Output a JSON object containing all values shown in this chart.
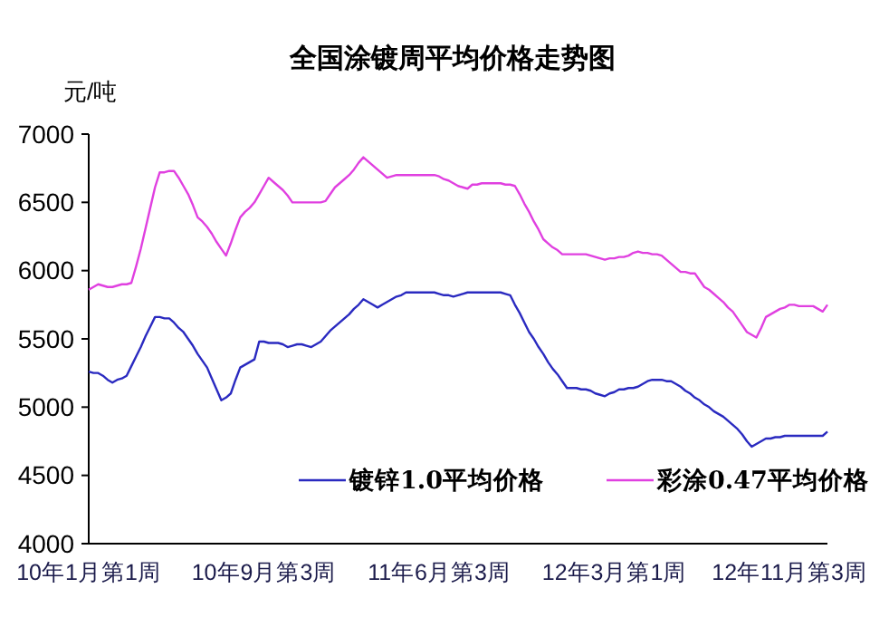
{
  "chart_data": {
    "type": "line",
    "title": "全国涂镀周平均价格走势图",
    "ylabel": "元/吨",
    "categories": [
      "10年1月第1周",
      null,
      null,
      null,
      null,
      null,
      null,
      null,
      null,
      null,
      null,
      null,
      null,
      null,
      null,
      null,
      null,
      null,
      null,
      null,
      null,
      null,
      null,
      null,
      null,
      null,
      null,
      null,
      null,
      null,
      null,
      null,
      null,
      null,
      null,
      null,
      null,
      "10年9月第3周",
      null,
      null,
      null,
      null,
      null,
      null,
      null,
      null,
      null,
      null,
      null,
      null,
      null,
      null,
      null,
      null,
      null,
      null,
      null,
      null,
      null,
      null,
      null,
      null,
      null,
      null,
      null,
      null,
      null,
      null,
      null,
      null,
      null,
      null,
      null,
      null,
      "11年6月第3周",
      null,
      null,
      null,
      null,
      null,
      null,
      null,
      null,
      null,
      null,
      null,
      null,
      null,
      null,
      null,
      null,
      null,
      null,
      null,
      null,
      null,
      null,
      null,
      null,
      null,
      null,
      null,
      null,
      null,
      null,
      null,
      null,
      null,
      null,
      null,
      null,
      "12年3月第1周",
      null,
      null,
      null,
      null,
      null,
      null,
      null,
      null,
      null,
      null,
      null,
      null,
      null,
      null,
      null,
      null,
      null,
      null,
      null,
      null,
      null,
      null,
      null,
      null,
      null,
      null,
      null,
      null,
      null,
      null,
      null,
      null,
      null,
      null,
      null,
      null,
      "12年11月第3周",
      null,
      null,
      null,
      null,
      null,
      null,
      null,
      null
    ],
    "series": [
      {
        "name": "镀锌1.0平均价格",
        "color": "#2a2ac0",
        "values": [
          5260,
          5250,
          5250,
          5230,
          5200,
          5180,
          5200,
          5210,
          5230,
          5300,
          5370,
          5440,
          5520,
          5590,
          5660,
          5660,
          5650,
          5650,
          5620,
          5580,
          5550,
          5500,
          5450,
          5390,
          5340,
          5290,
          5210,
          5130,
          5050,
          5070,
          5100,
          5200,
          5290,
          5310,
          5330,
          5350,
          5480,
          5480,
          5470,
          5470,
          5470,
          5460,
          5440,
          5450,
          5460,
          5460,
          5450,
          5440,
          5460,
          5480,
          5520,
          5560,
          5590,
          5620,
          5650,
          5680,
          5720,
          5750,
          5790,
          5770,
          5750,
          5730,
          5750,
          5770,
          5790,
          5810,
          5820,
          5840,
          5840,
          5840,
          5840,
          5840,
          5840,
          5840,
          5830,
          5820,
          5820,
          5810,
          5820,
          5830,
          5840,
          5840,
          5840,
          5840,
          5840,
          5840,
          5840,
          5840,
          5830,
          5820,
          5750,
          5690,
          5620,
          5550,
          5500,
          5440,
          5390,
          5330,
          5280,
          5240,
          5190,
          5140,
          5140,
          5140,
          5130,
          5130,
          5120,
          5100,
          5090,
          5080,
          5100,
          5110,
          5130,
          5130,
          5140,
          5140,
          5150,
          5170,
          5190,
          5200,
          5200,
          5200,
          5190,
          5190,
          5170,
          5150,
          5120,
          5100,
          5070,
          5050,
          5020,
          5000,
          4970,
          4950,
          4930,
          4900,
          4870,
          4840,
          4800,
          4750,
          4710,
          4730,
          4750,
          4770,
          4770,
          4780,
          4780,
          4790,
          4790,
          4790,
          4790,
          4790,
          4790,
          4790,
          4790,
          4790,
          4820
        ]
      },
      {
        "name": "彩涂0.47平均价格",
        "color": "#e040e0",
        "values": [
          5860,
          5880,
          5900,
          5890,
          5880,
          5880,
          5890,
          5900,
          5900,
          5910,
          6030,
          6160,
          6310,
          6460,
          6610,
          6720,
          6720,
          6730,
          6730,
          6680,
          6620,
          6560,
          6480,
          6390,
          6360,
          6320,
          6270,
          6210,
          6160,
          6110,
          6200,
          6300,
          6390,
          6430,
          6460,
          6500,
          6560,
          6620,
          6680,
          6650,
          6620,
          6590,
          6550,
          6500,
          6500,
          6500,
          6500,
          6500,
          6500,
          6500,
          6510,
          6560,
          6610,
          6640,
          6670,
          6700,
          6740,
          6790,
          6830,
          6800,
          6770,
          6740,
          6710,
          6680,
          6690,
          6700,
          6700,
          6700,
          6700,
          6700,
          6700,
          6700,
          6700,
          6700,
          6690,
          6670,
          6660,
          6640,
          6620,
          6610,
          6600,
          6630,
          6630,
          6640,
          6640,
          6640,
          6640,
          6640,
          6630,
          6630,
          6620,
          6560,
          6490,
          6430,
          6360,
          6300,
          6230,
          6200,
          6170,
          6150,
          6120,
          6120,
          6120,
          6120,
          6120,
          6120,
          6110,
          6100,
          6090,
          6080,
          6090,
          6090,
          6100,
          6100,
          6110,
          6130,
          6140,
          6130,
          6130,
          6120,
          6120,
          6110,
          6080,
          6050,
          6020,
          5990,
          5990,
          5980,
          5980,
          5930,
          5880,
          5860,
          5830,
          5800,
          5770,
          5730,
          5700,
          5650,
          5600,
          5550,
          5530,
          5510,
          5580,
          5660,
          5680,
          5700,
          5720,
          5730,
          5750,
          5750,
          5740,
          5740,
          5740,
          5740,
          5720,
          5700,
          5750
        ]
      }
    ],
    "ylim": [
      4000,
      7000
    ],
    "yticks": [
      4000,
      4500,
      5000,
      5500,
      6000,
      6500,
      7000
    ],
    "grid": false,
    "legend": "bottom",
    "marker": "none",
    "line_style": "solid"
  }
}
